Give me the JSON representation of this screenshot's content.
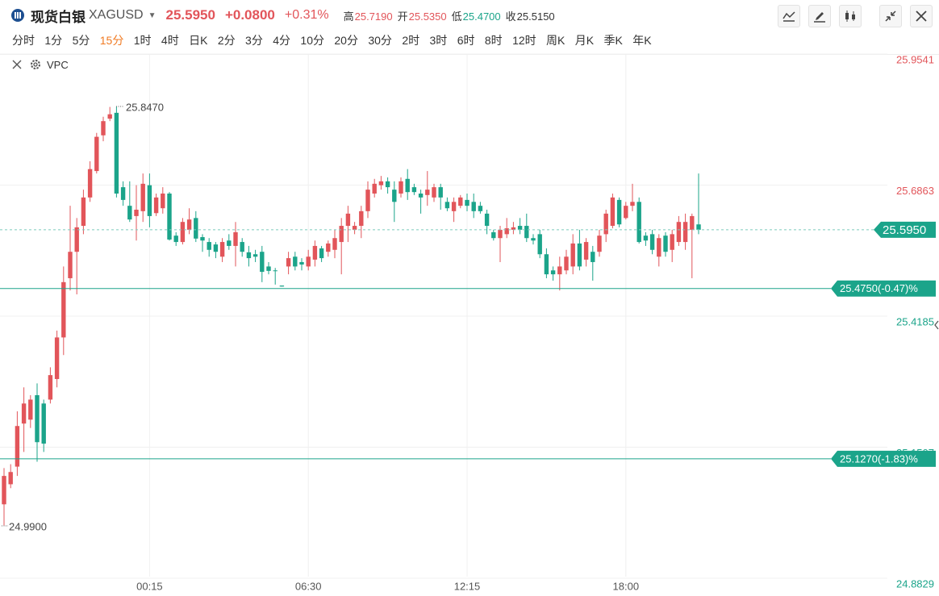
{
  "header": {
    "name": "现货白银",
    "symbol": "XAGUSD",
    "price": "25.5950",
    "change": "+0.0800",
    "change_pct": "+0.31%",
    "stats": [
      {
        "label": "高",
        "value": "25.7190"
      },
      {
        "label": "开",
        "value": "25.5350"
      },
      {
        "label": "低",
        "value": "25.4700"
      },
      {
        "label": "收",
        "value": "25.5150"
      }
    ]
  },
  "timeframes": [
    "分时",
    "1分",
    "5分",
    "15分",
    "1时",
    "4时",
    "日K",
    "2分",
    "3分",
    "4分",
    "10分",
    "20分",
    "30分",
    "2时",
    "3时",
    "6时",
    "8时",
    "12时",
    "周K",
    "月K",
    "季K",
    "年K"
  ],
  "active_timeframe": "15分",
  "indicator": "VPC",
  "chart_data": {
    "type": "candlestick",
    "up_color": "#e2555a",
    "down_color": "#1ba48a",
    "ylim": [
      24.8829,
      25.9541
    ],
    "yticks": [
      25.9541,
      25.6863,
      25.4185,
      25.1507,
      24.8829
    ],
    "grid": true,
    "categories": [
      null,
      null,
      null,
      null,
      null,
      null,
      null,
      null,
      null,
      null,
      null,
      null,
      null,
      null,
      null,
      null,
      null,
      null,
      null,
      null,
      null,
      null,
      "00:15",
      null,
      null,
      null,
      null,
      null,
      null,
      null,
      null,
      null,
      null,
      null,
      null,
      null,
      null,
      null,
      null,
      null,
      null,
      null,
      null,
      null,
      null,
      null,
      "06:30",
      null,
      null,
      null,
      null,
      null,
      null,
      null,
      null,
      null,
      null,
      null,
      null,
      null,
      null,
      null,
      null,
      null,
      null,
      null,
      null,
      null,
      null,
      null,
      "12:15",
      null,
      null,
      null,
      null,
      null,
      null,
      null,
      null,
      null,
      null,
      null,
      null,
      null,
      null,
      null,
      null,
      null,
      null,
      null,
      null,
      null,
      null,
      null,
      "18:00",
      null,
      null,
      null,
      null,
      null,
      null,
      null,
      null,
      null,
      null,
      null
    ],
    "ohlc": [
      [
        25.034,
        25.108,
        24.99,
        25.092
      ],
      [
        25.075,
        25.116,
        25.067,
        25.1
      ],
      [
        25.111,
        25.224,
        25.092,
        25.194
      ],
      [
        25.199,
        25.273,
        25.141,
        25.24
      ],
      [
        25.207,
        25.257,
        25.19,
        25.248
      ],
      [
        25.257,
        25.281,
        25.121,
        25.161
      ],
      [
        25.24,
        25.248,
        25.141,
        25.158
      ],
      [
        25.248,
        25.314,
        25.24,
        25.298
      ],
      [
        25.29,
        25.389,
        25.273,
        25.375
      ],
      [
        25.375,
        25.52,
        25.339,
        25.488
      ],
      [
        25.496,
        25.644,
        25.471,
        25.55
      ],
      [
        25.55,
        25.619,
        25.463,
        25.6
      ],
      [
        25.603,
        25.677,
        25.586,
        25.661
      ],
      [
        25.661,
        25.735,
        25.652,
        25.719
      ],
      [
        25.715,
        25.793,
        25.71,
        25.785
      ],
      [
        25.788,
        25.826,
        25.776,
        25.817
      ],
      [
        25.822,
        25.846,
        25.817,
        25.831
      ],
      [
        25.834,
        25.847,
        25.661,
        25.669
      ],
      [
        25.682,
        25.694,
        25.644,
        25.656
      ],
      [
        25.644,
        25.694,
        25.611,
        25.616
      ],
      [
        25.623,
        25.686,
        25.573,
        25.636
      ],
      [
        25.633,
        25.71,
        25.611,
        25.689
      ],
      [
        25.686,
        25.71,
        25.6,
        25.623
      ],
      [
        25.629,
        25.669,
        25.623,
        25.661
      ],
      [
        25.639,
        25.682,
        25.628,
        25.669
      ],
      [
        25.669,
        25.672,
        25.573,
        25.575
      ],
      [
        25.583,
        25.59,
        25.562,
        25.57
      ],
      [
        25.57,
        25.619,
        25.565,
        25.611
      ],
      [
        25.595,
        25.639,
        25.586,
        25.616
      ],
      [
        25.619,
        25.633,
        25.57,
        25.577
      ],
      [
        25.58,
        25.586,
        25.55,
        25.573
      ],
      [
        25.57,
        25.578,
        25.54,
        25.554
      ],
      [
        25.565,
        25.57,
        25.537,
        25.55
      ],
      [
        25.54,
        25.578,
        25.529,
        25.57
      ],
      [
        25.573,
        25.586,
        25.554,
        25.562
      ],
      [
        25.562,
        25.611,
        25.52,
        25.59
      ],
      [
        25.57,
        25.578,
        25.54,
        25.55
      ],
      [
        25.549,
        25.562,
        25.52,
        25.537
      ],
      [
        25.545,
        25.554,
        25.529,
        25.54
      ],
      [
        25.55,
        25.562,
        25.488,
        25.509
      ],
      [
        25.52,
        25.529,
        25.504,
        25.511
      ],
      [
        25.512,
        25.517,
        25.483,
        25.511
      ],
      [
        25.481,
        25.481,
        25.479,
        25.479
      ],
      [
        25.52,
        25.55,
        25.504,
        25.537
      ],
      [
        25.54,
        25.55,
        25.512,
        25.52
      ],
      [
        25.529,
        25.537,
        25.512,
        25.524
      ],
      [
        25.52,
        25.554,
        25.512,
        25.54
      ],
      [
        25.534,
        25.573,
        25.52,
        25.562
      ],
      [
        25.557,
        25.562,
        25.529,
        25.537
      ],
      [
        25.55,
        25.573,
        25.54,
        25.567
      ],
      [
        25.554,
        25.595,
        25.537,
        25.578
      ],
      [
        25.57,
        25.619,
        25.504,
        25.603
      ],
      [
        25.603,
        25.644,
        25.57,
        25.628
      ],
      [
        25.595,
        25.611,
        25.586,
        25.603
      ],
      [
        25.603,
        25.644,
        25.578,
        25.633
      ],
      [
        25.633,
        25.694,
        25.619,
        25.677
      ],
      [
        25.669,
        25.699,
        25.661,
        25.689
      ],
      [
        25.686,
        25.705,
        25.677,
        25.694
      ],
      [
        25.694,
        25.702,
        25.669,
        25.682
      ],
      [
        25.677,
        25.694,
        25.611,
        25.652
      ],
      [
        25.669,
        25.702,
        25.661,
        25.694
      ],
      [
        25.699,
        25.719,
        25.656,
        25.672
      ],
      [
        25.682,
        25.689,
        25.666,
        25.672
      ],
      [
        25.669,
        25.677,
        25.628,
        25.661
      ],
      [
        25.666,
        25.715,
        25.644,
        25.677
      ],
      [
        25.661,
        25.689,
        25.652,
        25.682
      ],
      [
        25.682,
        25.689,
        25.636,
        25.661
      ],
      [
        25.652,
        25.661,
        25.633,
        25.639
      ],
      [
        25.633,
        25.661,
        25.611,
        25.652
      ],
      [
        25.644,
        25.666,
        25.639,
        25.661
      ],
      [
        25.656,
        25.669,
        25.633,
        25.644
      ],
      [
        25.652,
        25.669,
        25.619,
        25.633
      ],
      [
        25.644,
        25.652,
        25.628,
        25.633
      ],
      [
        25.628,
        25.636,
        25.586,
        25.603
      ],
      [
        25.59,
        25.595,
        25.573,
        25.578
      ],
      [
        25.578,
        25.603,
        25.529,
        25.595
      ],
      [
        25.586,
        25.619,
        25.578,
        25.598
      ],
      [
        25.595,
        25.611,
        25.586,
        25.6
      ],
      [
        25.603,
        25.619,
        25.586,
        25.595
      ],
      [
        25.603,
        25.628,
        25.57,
        25.578
      ],
      [
        25.578,
        25.586,
        25.565,
        25.573
      ],
      [
        25.586,
        25.595,
        25.537,
        25.545
      ],
      [
        25.545,
        25.557,
        25.496,
        25.504
      ],
      [
        25.512,
        25.52,
        25.491,
        25.504
      ],
      [
        25.504,
        25.54,
        25.471,
        25.52
      ],
      [
        25.512,
        25.554,
        25.504,
        25.54
      ],
      [
        25.52,
        25.586,
        25.504,
        25.567
      ],
      [
        25.567,
        25.595,
        25.512,
        25.52
      ],
      [
        25.534,
        25.578,
        25.52,
        25.57
      ],
      [
        25.55,
        25.562,
        25.491,
        25.529
      ],
      [
        25.55,
        25.595,
        25.54,
        25.583
      ],
      [
        25.586,
        25.636,
        25.57,
        25.628
      ],
      [
        25.603,
        25.669,
        25.598,
        25.661
      ],
      [
        25.656,
        25.661,
        25.6,
        25.606
      ],
      [
        25.619,
        25.652,
        25.616,
        25.644
      ],
      [
        25.644,
        25.689,
        25.633,
        25.652
      ],
      [
        25.652,
        25.661,
        25.567,
        25.57
      ],
      [
        25.583,
        25.59,
        25.562,
        25.573
      ],
      [
        25.586,
        25.595,
        25.545,
        25.554
      ],
      [
        25.54,
        25.586,
        25.52,
        25.578
      ],
      [
        25.583,
        25.59,
        25.54,
        25.55
      ],
      [
        25.554,
        25.595,
        25.529,
        25.586
      ],
      [
        25.57,
        25.623,
        25.562,
        25.611
      ],
      [
        25.57,
        25.628,
        25.554,
        25.611
      ],
      [
        25.595,
        25.628,
        25.496,
        25.623
      ],
      [
        25.606,
        25.71,
        25.586,
        25.595
      ]
    ],
    "current_price": {
      "value": 25.595,
      "label": "25.5950"
    },
    "price_lines": [
      {
        "value": 25.475,
        "label": "25.4750(-0.47)%"
      },
      {
        "value": 25.127,
        "label": "25.1270(-1.83)%"
      }
    ],
    "annotations": [
      {
        "value": 25.847,
        "label": "25.8470"
      },
      {
        "value": 24.99,
        "label": "24.9900"
      }
    ]
  }
}
